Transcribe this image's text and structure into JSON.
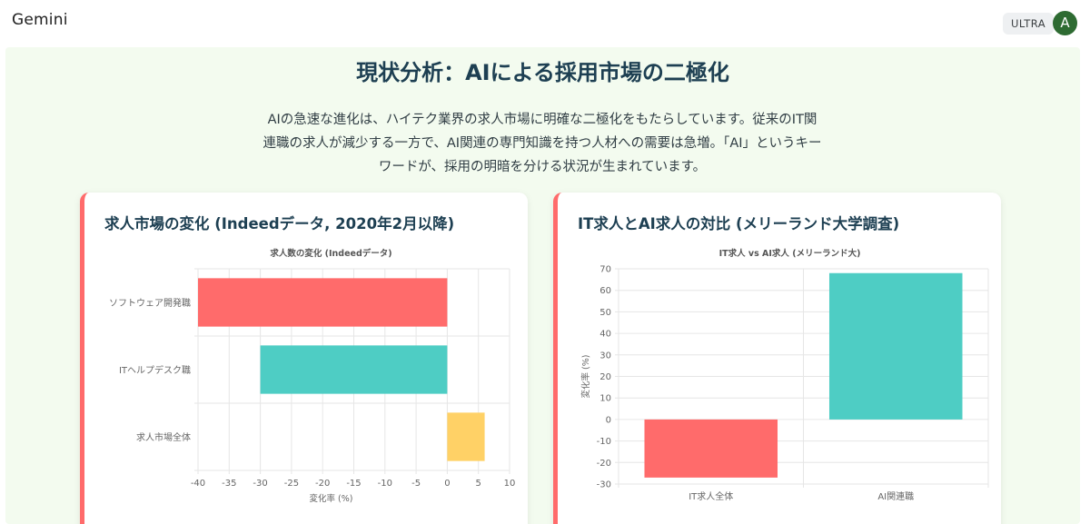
{
  "app": {
    "brand": "Gemini",
    "plan_badge": "ULTRA",
    "avatar_initial": "A"
  },
  "section": {
    "title": "現状分析：AIによる採用市場の二極化",
    "intro_lines": [
      "AIの急速な進化は、ハイテク業界の求人市場に明確な二極化をもたらしています。従来のIT関",
      "連職の求人が減少する一方で、AI関連の専門知識を持つ人材への需要は急増。「AI」というキー",
      "ワードが、採用の明暗を分ける状況が生まれています。"
    ]
  },
  "cards": [
    {
      "title": "求人市場の変化 (Indeedデータ, 2020年2月以降)"
    },
    {
      "title": "IT求人とAI求人の対比 (メリーランド大学調査)"
    }
  ],
  "chart_data": [
    {
      "type": "bar",
      "orientation": "horizontal",
      "title": "求人数の変化 (Indeedデータ)",
      "categories": [
        "ソフトウェア開発職",
        "ITヘルプデスク職",
        "求人市場全体"
      ],
      "values": [
        -40,
        -30,
        6
      ],
      "colors": [
        "#ff6b6b",
        "#4ecdc4",
        "#ffd166"
      ],
      "xlabel": "変化率 (%)",
      "ylabel": "",
      "xlim": [
        -40,
        10
      ],
      "xticks": [
        -40,
        -35,
        -30,
        -25,
        -20,
        -15,
        -10,
        -5,
        0,
        5,
        10
      ],
      "grid": true
    },
    {
      "type": "bar",
      "orientation": "vertical",
      "title": "IT求人 vs AI求人 (メリーランド大)",
      "categories": [
        "IT求人全体",
        "AI関連職"
      ],
      "values": [
        -27,
        68
      ],
      "colors": [
        "#ff6b6b",
        "#4ecdc4"
      ],
      "xlabel": "",
      "ylabel": "変化率 (%)",
      "ylim": [
        -30,
        70
      ],
      "yticks": [
        -30,
        -20,
        -10,
        0,
        10,
        20,
        30,
        40,
        50,
        60,
        70
      ],
      "grid": true
    }
  ]
}
